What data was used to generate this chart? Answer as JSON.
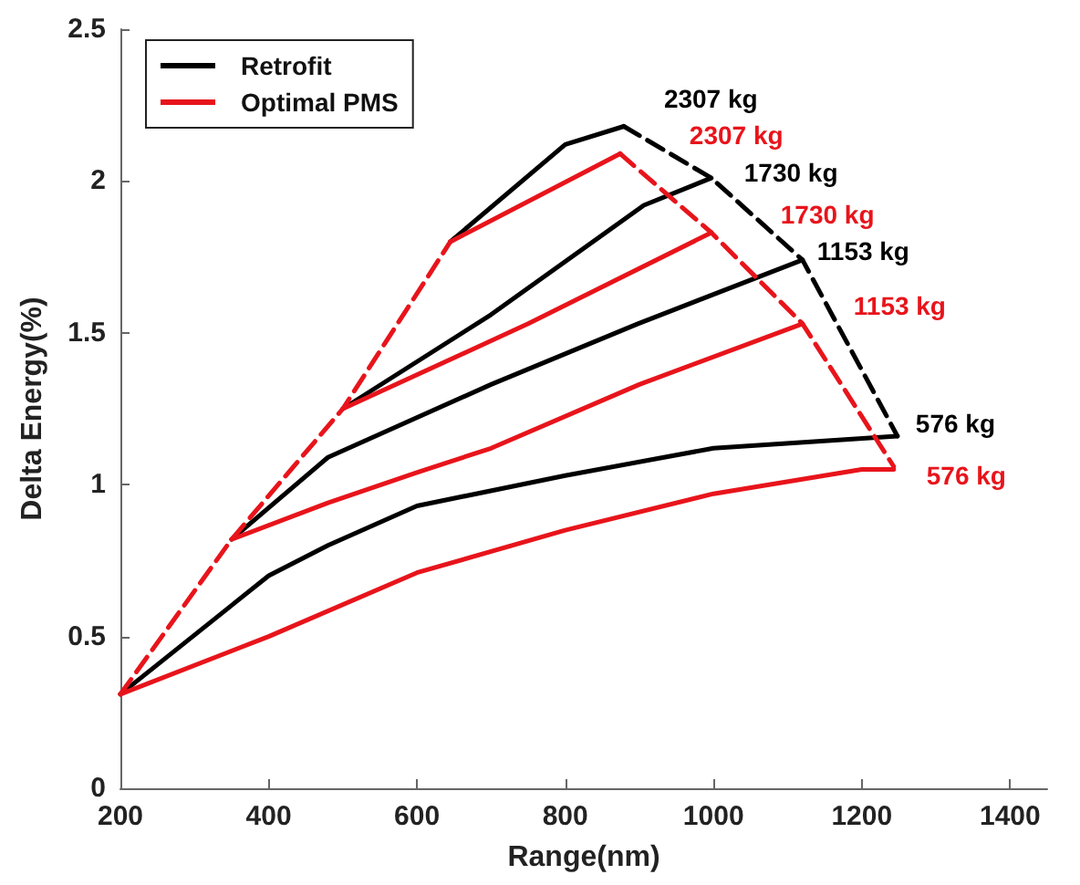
{
  "chart_data": {
    "type": "line",
    "xlabel": "Range(nm)",
    "ylabel": "Delta Energy(%)",
    "xlim": [
      200,
      1450
    ],
    "xticks": [
      200,
      400,
      600,
      800,
      1000,
      1200,
      1400
    ],
    "ylim": [
      0,
      2.5
    ],
    "yticks": [
      0,
      0.5,
      1,
      1.5,
      2,
      2.5
    ],
    "grid": false,
    "legend": "top left",
    "marker": "none",
    "line_style": "solid",
    "series": [
      {
        "name": "Retrofit",
        "color": "#000000",
        "x": [
          645,
          800,
          879
        ],
        "values": [
          1.8,
          2.12,
          2.18
        ]
      },
      {
        "name": "Optimal PMS",
        "color": "#e8141b",
        "x": [
          645,
          874
        ],
        "values": [
          1.8,
          2.09
        ]
      },
      {
        "color": "#000000",
        "x": [
          500,
          700,
          906,
          997
        ],
        "values": [
          1.25,
          1.56,
          1.92,
          2.01
        ]
      },
      {
        "color": "#e8141b",
        "x": [
          500,
          750,
          997
        ],
        "values": [
          1.25,
          1.53,
          1.83
        ]
      },
      {
        "color": "#000000",
        "x": [
          350,
          480,
          700,
          898,
          1120
        ],
        "values": [
          0.82,
          1.09,
          1.33,
          1.53,
          1.74
        ]
      },
      {
        "color": "#e8141b",
        "x": [
          350,
          480,
          600,
          700,
          900,
          1120
        ],
        "values": [
          0.82,
          0.94,
          1.04,
          1.12,
          1.33,
          1.53
        ]
      },
      {
        "color": "#000000",
        "x": [
          200,
          400,
          480,
          600,
          800,
          1000,
          1248
        ],
        "values": [
          0.31,
          0.7,
          0.8,
          0.93,
          1.03,
          1.12,
          1.16
        ]
      },
      {
        "color": "#e8141b",
        "x": [
          200,
          400,
          600,
          800,
          1000,
          1200,
          1243
        ],
        "values": [
          0.31,
          0.5,
          0.71,
          0.85,
          0.97,
          1.05,
          1.05
        ]
      },
      {
        "color": "#e8141b",
        "line_style": "dashed",
        "x": [
          200,
          350,
          500,
          645
        ],
        "values": [
          0.31,
          0.82,
          1.25,
          1.8
        ]
      },
      {
        "color": "#000000",
        "line_style": "dashed",
        "x": [
          879,
          997,
          1120,
          1248
        ],
        "values": [
          2.18,
          2.01,
          1.74,
          1.16
        ]
      },
      {
        "color": "#e8141b",
        "line_style": "dashed",
        "x": [
          874,
          997,
          1120,
          1243
        ],
        "values": [
          2.09,
          1.83,
          1.53,
          1.06
        ]
      }
    ],
    "annotations": [
      {
        "text": "2307 kg",
        "x": 879,
        "y": 2.18
      },
      {
        "text": "2307 kg",
        "x": 874,
        "y": 2.09
      },
      {
        "text": "1730 kg",
        "x": 997,
        "y": 2.01
      },
      {
        "text": "1730 kg",
        "x": 997,
        "y": 1.83
      },
      {
        "text": "1153 kg",
        "x": 1120,
        "y": 1.74
      },
      {
        "text": "1153 kg",
        "x": 1120,
        "y": 1.53
      },
      {
        "text": "576 kg",
        "x": 1248,
        "y": 1.16
      },
      {
        "text": "576 kg",
        "x": 1243,
        "y": 1.05
      }
    ]
  }
}
